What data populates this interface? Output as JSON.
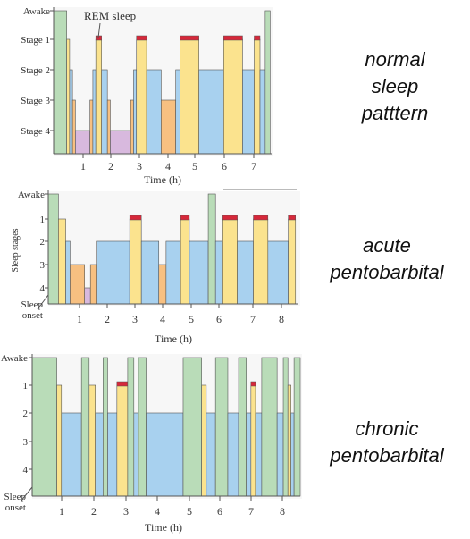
{
  "colors": {
    "awake": "#b9dcb8",
    "rem": "#d6283a",
    "stage1": "#fbe38e",
    "stage2": "#a8d1ef",
    "stage3": "#f7c081",
    "stage4": "#d8b9de",
    "outline": "#555555",
    "background": "#ffffff",
    "panel_bg": "#f7f7f7"
  },
  "side_labels": {
    "normal": [
      "normal",
      "sleep",
      "patttern"
    ],
    "acute": [
      "acute",
      "pentobarbital"
    ],
    "chronic": [
      "chronic",
      "pentobarbital"
    ]
  },
  "chart_data": [
    {
      "type": "hypnogram",
      "panel": "normal",
      "stage_labels": [
        "Awake",
        "Stage 1",
        "Stage 2",
        "Stage 3",
        "Stage 4"
      ],
      "xlabel": "Time (h)",
      "xticks": [
        "1",
        "2",
        "3",
        "4",
        "5",
        "6",
        "7"
      ],
      "annotation": "REM sleep",
      "xlim": [
        0,
        7.5
      ],
      "segments": [
        {
          "start": 0.0,
          "end": 0.45,
          "stage": "awake"
        },
        {
          "start": 0.45,
          "end": 0.55,
          "stage": "1"
        },
        {
          "start": 0.55,
          "end": 0.65,
          "stage": "2"
        },
        {
          "start": 0.65,
          "end": 0.75,
          "stage": "3"
        },
        {
          "start": 0.75,
          "end": 1.25,
          "stage": "4"
        },
        {
          "start": 1.25,
          "end": 1.35,
          "stage": "3"
        },
        {
          "start": 1.35,
          "end": 1.45,
          "stage": "2"
        },
        {
          "start": 1.45,
          "end": 1.65,
          "stage": "1",
          "rem": true
        },
        {
          "start": 1.65,
          "end": 1.85,
          "stage": "2"
        },
        {
          "start": 1.85,
          "end": 1.95,
          "stage": "3"
        },
        {
          "start": 1.95,
          "end": 2.65,
          "stage": "4"
        },
        {
          "start": 2.65,
          "end": 2.75,
          "stage": "3"
        },
        {
          "start": 2.75,
          "end": 2.85,
          "stage": "2"
        },
        {
          "start": 2.85,
          "end": 3.2,
          "stage": "1",
          "rem": true
        },
        {
          "start": 3.2,
          "end": 3.7,
          "stage": "2"
        },
        {
          "start": 3.7,
          "end": 4.2,
          "stage": "3"
        },
        {
          "start": 4.2,
          "end": 4.35,
          "stage": "2"
        },
        {
          "start": 4.35,
          "end": 5.0,
          "stage": "1",
          "rem": true
        },
        {
          "start": 5.0,
          "end": 5.85,
          "stage": "2"
        },
        {
          "start": 5.85,
          "end": 6.5,
          "stage": "1",
          "rem": true
        },
        {
          "start": 6.5,
          "end": 6.9,
          "stage": "2"
        },
        {
          "start": 6.9,
          "end": 7.1,
          "stage": "1",
          "rem": true
        },
        {
          "start": 7.1,
          "end": 7.28,
          "stage": "2"
        },
        {
          "start": 7.28,
          "end": 7.45,
          "stage": "awake"
        }
      ]
    },
    {
      "type": "hypnogram",
      "panel": "acute",
      "ylabel": "Sleep stages",
      "stage_labels": [
        "Awake",
        "1",
        "2",
        "3",
        "4",
        "Sleep onset"
      ],
      "xlabel": "Time (h)",
      "xticks": [
        "1",
        "2",
        "3",
        "4",
        "5",
        "6",
        "7",
        "8"
      ],
      "xlim": [
        0,
        8.6
      ],
      "segments": [
        {
          "start": 0.0,
          "end": 0.35,
          "stage": "awake"
        },
        {
          "start": 0.35,
          "end": 0.6,
          "stage": "1"
        },
        {
          "start": 0.6,
          "end": 0.75,
          "stage": "2"
        },
        {
          "start": 0.75,
          "end": 1.25,
          "stage": "3"
        },
        {
          "start": 1.25,
          "end": 1.45,
          "stage": "4"
        },
        {
          "start": 1.45,
          "end": 1.65,
          "stage": "3"
        },
        {
          "start": 1.65,
          "end": 2.8,
          "stage": "2"
        },
        {
          "start": 2.8,
          "end": 3.2,
          "stage": "1",
          "rem": true
        },
        {
          "start": 3.2,
          "end": 3.8,
          "stage": "2"
        },
        {
          "start": 3.8,
          "end": 4.05,
          "stage": "3"
        },
        {
          "start": 4.05,
          "end": 4.55,
          "stage": "2"
        },
        {
          "start": 4.55,
          "end": 4.85,
          "stage": "1",
          "rem": true
        },
        {
          "start": 4.85,
          "end": 5.5,
          "stage": "2"
        },
        {
          "start": 5.5,
          "end": 5.75,
          "stage": "awake"
        },
        {
          "start": 5.75,
          "end": 6.0,
          "stage": "2"
        },
        {
          "start": 6.0,
          "end": 6.5,
          "stage": "1",
          "rem": true
        },
        {
          "start": 6.5,
          "end": 7.05,
          "stage": "2"
        },
        {
          "start": 7.05,
          "end": 7.55,
          "stage": "1",
          "rem": true
        },
        {
          "start": 7.55,
          "end": 8.25,
          "stage": "2"
        },
        {
          "start": 8.25,
          "end": 8.5,
          "stage": "1",
          "rem": true
        }
      ]
    },
    {
      "type": "hypnogram",
      "panel": "chronic",
      "stage_labels": [
        "Awake",
        "1",
        "2",
        "3",
        "4",
        "Sleep onset"
      ],
      "xlabel": "Time (h)",
      "xticks": [
        "1",
        "2",
        "3",
        "4",
        "5",
        "6",
        "7",
        "8"
      ],
      "xlim": [
        0,
        8.7
      ],
      "segments": [
        {
          "start": 0.0,
          "end": 0.8,
          "stage": "awake"
        },
        {
          "start": 0.8,
          "end": 0.95,
          "stage": "1"
        },
        {
          "start": 0.95,
          "end": 1.6,
          "stage": "2"
        },
        {
          "start": 1.6,
          "end": 1.85,
          "stage": "awake"
        },
        {
          "start": 1.85,
          "end": 2.05,
          "stage": "1"
        },
        {
          "start": 2.05,
          "end": 2.3,
          "stage": "2"
        },
        {
          "start": 2.3,
          "end": 2.45,
          "stage": "awake"
        },
        {
          "start": 2.45,
          "end": 2.75,
          "stage": "2"
        },
        {
          "start": 2.75,
          "end": 3.1,
          "stage": "1",
          "rem": true
        },
        {
          "start": 3.1,
          "end": 3.3,
          "stage": "awake"
        },
        {
          "start": 3.3,
          "end": 3.45,
          "stage": "2"
        },
        {
          "start": 3.45,
          "end": 3.7,
          "stage": "awake"
        },
        {
          "start": 3.7,
          "end": 4.9,
          "stage": "2"
        },
        {
          "start": 4.9,
          "end": 5.5,
          "stage": "awake"
        },
        {
          "start": 5.5,
          "end": 5.65,
          "stage": "1"
        },
        {
          "start": 5.65,
          "end": 5.95,
          "stage": "2"
        },
        {
          "start": 5.95,
          "end": 6.35,
          "stage": "awake"
        },
        {
          "start": 6.35,
          "end": 6.7,
          "stage": "2"
        },
        {
          "start": 6.7,
          "end": 6.95,
          "stage": "awake"
        },
        {
          "start": 6.95,
          "end": 7.1,
          "stage": "2"
        },
        {
          "start": 7.1,
          "end": 7.25,
          "stage": "1",
          "rem": true
        },
        {
          "start": 7.25,
          "end": 7.45,
          "stage": "2"
        },
        {
          "start": 7.45,
          "end": 7.95,
          "stage": "awake"
        },
        {
          "start": 7.95,
          "end": 8.15,
          "stage": "2"
        },
        {
          "start": 8.15,
          "end": 8.3,
          "stage": "awake"
        },
        {
          "start": 8.3,
          "end": 8.4,
          "stage": "1"
        },
        {
          "start": 8.4,
          "end": 8.5,
          "stage": "2"
        },
        {
          "start": 8.5,
          "end": 8.7,
          "stage": "awake"
        }
      ]
    }
  ]
}
